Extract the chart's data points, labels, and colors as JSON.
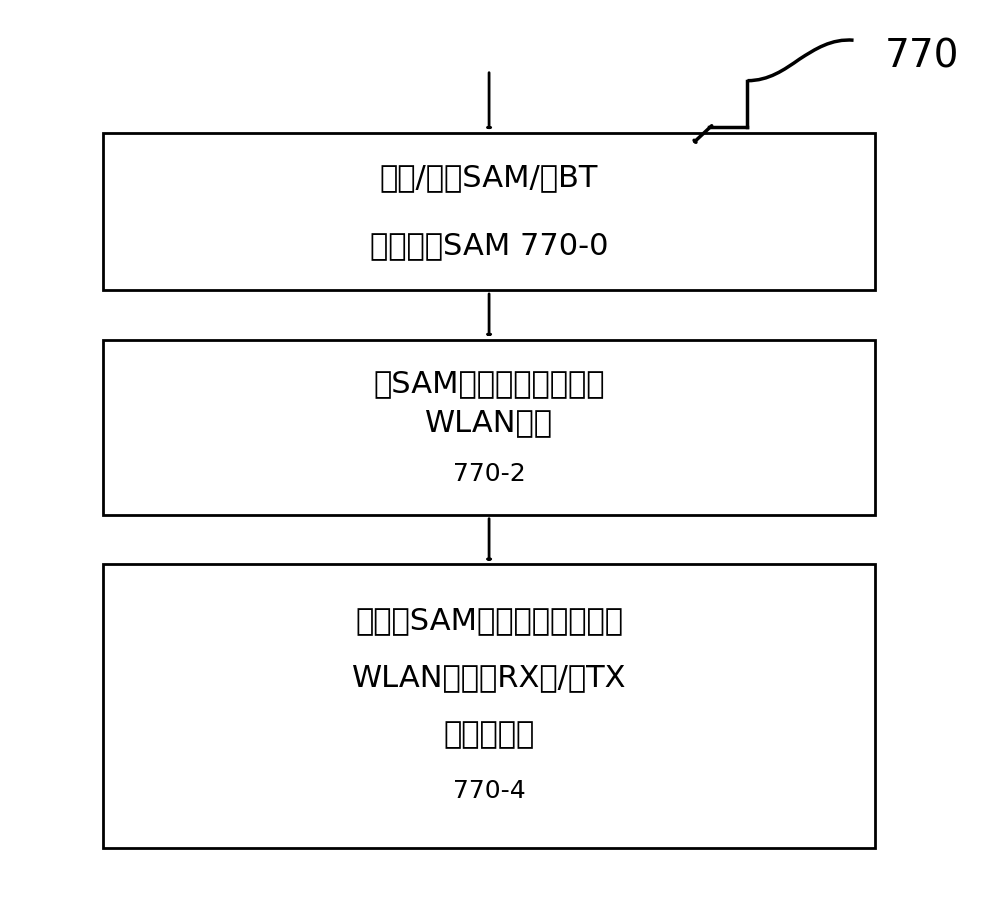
{
  "background_color": "#ffffff",
  "fig_width": 9.84,
  "fig_height": 9.13,
  "label_770": "770",
  "box0_line1": "创建/接收SAM/与BT",
  "box0_line2": "电路协商SAM 770-0",
  "box1_line1": "将SAM信息发送至并置的",
  "box1_line2": "WLAN电路",
  "box1_label": "770-2",
  "box2_line1": "响应于SAM信息来改变并置的",
  "box2_line2": "WLAN电路的RX和/或TX",
  "box2_line3": "操作的调度",
  "box2_label": "770-4",
  "font_size_main": 22,
  "font_size_label": 18,
  "font_size_770": 28,
  "text_color": "#000000",
  "box_edge_color": "#000000",
  "box_face_color": "#ffffff",
  "arrow_color": "#000000"
}
